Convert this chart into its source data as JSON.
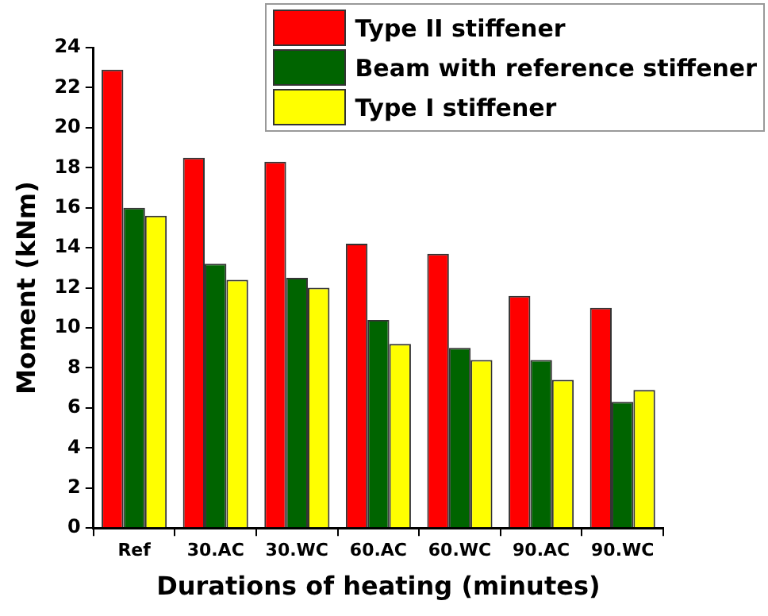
{
  "chart_data": {
    "type": "bar",
    "xlabel": "Durations of heating (minutes)",
    "ylabel": "Moment (kNm)",
    "categories": [
      "Ref",
      "30.AC",
      "30.WC",
      "60.AC",
      "60.WC",
      "90.AC",
      "90.WC"
    ],
    "series": [
      {
        "name": "Type II stiffener",
        "color": "#ff0000",
        "values": [
          22.9,
          18.5,
          18.3,
          14.2,
          13.7,
          11.6,
          11.0
        ]
      },
      {
        "name": "Beam with reference stiffener",
        "color": "#006400",
        "values": [
          16.0,
          13.2,
          12.5,
          10.4,
          9.0,
          8.4,
          6.3
        ]
      },
      {
        "name": "Type I stiffener",
        "color": "#ffff00",
        "values": [
          15.6,
          12.4,
          12.0,
          9.2,
          8.4,
          7.4,
          6.9
        ]
      }
    ],
    "ylim": [
      0,
      24
    ],
    "yticks": [
      0,
      2,
      4,
      6,
      8,
      10,
      12,
      14,
      16,
      18,
      20,
      22,
      24
    ],
    "grid": false,
    "legend": "top right"
  }
}
